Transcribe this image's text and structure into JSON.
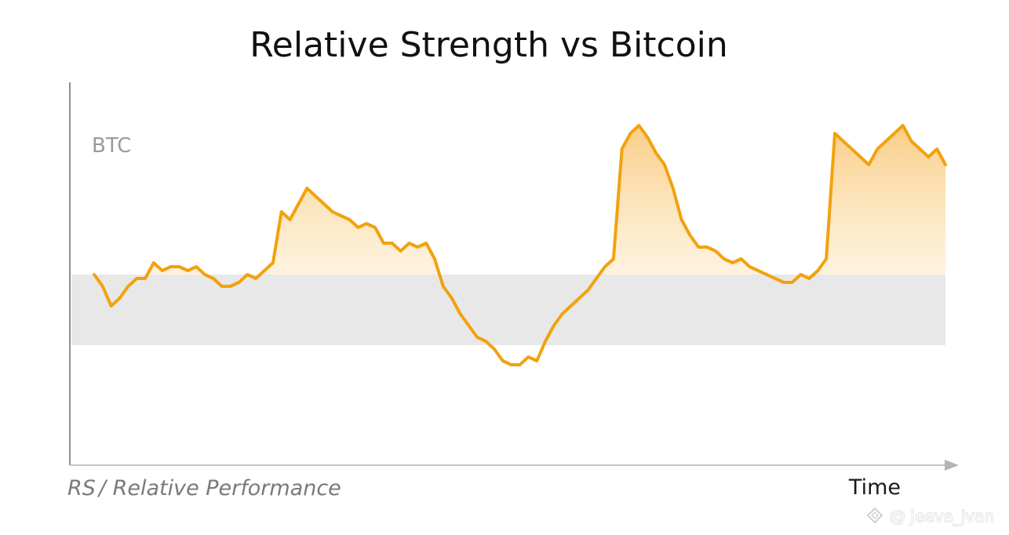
{
  "chart_data": {
    "type": "line",
    "title": "Relative Strength vs Bitcoin",
    "series_label": "BTC",
    "xlabel": "Time",
    "ylabel_prefix": "RS",
    "ylabel_suffix": "/ Relative Performance",
    "xlim": [
      0,
      100
    ],
    "ylim": [
      0,
      100
    ],
    "band": [
      30,
      48
    ],
    "baseline": 48,
    "series": [
      {
        "name": "BTC",
        "x": [
          0,
          1,
          2,
          3,
          4,
          5,
          6,
          7,
          8,
          9,
          10,
          11,
          12,
          13,
          14,
          15,
          16,
          17,
          18,
          19,
          20,
          21,
          22,
          23,
          24,
          25,
          26,
          27,
          28,
          29,
          30,
          31,
          32,
          33,
          34,
          35,
          36,
          37,
          38,
          39,
          40,
          41,
          42,
          43,
          44,
          45,
          46,
          47,
          48,
          49,
          50,
          51,
          52,
          53,
          54,
          55,
          56,
          57,
          58,
          59,
          60,
          61,
          62,
          63,
          64,
          65,
          66,
          67,
          68,
          69,
          70,
          71,
          72,
          73,
          74,
          75,
          76,
          77,
          78,
          79,
          80,
          81,
          82,
          83,
          84,
          85,
          86,
          87,
          88,
          89,
          90,
          91,
          92,
          93,
          94,
          95,
          96,
          97,
          98,
          99,
          100
        ],
        "y": [
          48,
          45,
          40,
          42,
          45,
          47,
          47,
          51,
          49,
          50,
          50,
          49,
          50,
          48,
          47,
          45,
          45,
          46,
          48,
          47,
          49,
          51,
          64,
          62,
          66,
          70,
          68,
          66,
          64,
          63,
          62,
          60,
          61,
          60,
          56,
          56,
          54,
          56,
          55,
          56,
          52,
          45,
          42,
          38,
          35,
          32,
          31,
          29,
          26,
          25,
          25,
          27,
          26,
          31,
          35,
          38,
          40,
          42,
          44,
          47,
          50,
          52,
          80,
          84,
          86,
          83,
          79,
          76,
          70,
          62,
          58,
          55,
          55,
          54,
          52,
          51,
          52,
          50,
          49,
          48,
          47,
          46,
          46,
          48,
          47,
          49,
          52,
          84,
          82,
          80,
          78,
          76,
          80,
          82,
          84,
          86,
          82,
          80,
          78,
          80,
          76
        ]
      }
    ]
  },
  "watermark": {
    "text": "@ Jeeva_jvan"
  }
}
